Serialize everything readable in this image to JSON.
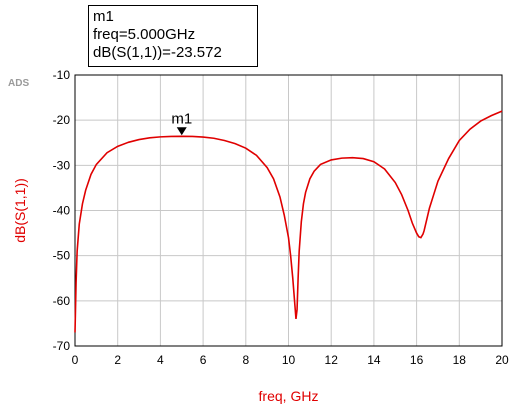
{
  "app_tag": "ADS",
  "marker": {
    "name": "m1",
    "freq_text": "freq=5.000GHz",
    "value_text": "dB(S(1,1))=-23.572"
  },
  "chart_data": {
    "type": "line",
    "title": "",
    "xlabel": "freq, GHz",
    "ylabel": "dB(S(1,1))",
    "xlim": [
      0,
      20
    ],
    "ylim": [
      -70,
      -10
    ],
    "xticks": [
      0,
      2,
      4,
      6,
      8,
      10,
      12,
      14,
      16,
      18,
      20
    ],
    "yticks": [
      -10,
      -20,
      -30,
      -40,
      -50,
      -60,
      -70
    ],
    "grid": true,
    "series": [
      {
        "color": "#e00000",
        "x": [
          0.0,
          0.05,
          0.1,
          0.2,
          0.35,
          0.5,
          0.75,
          1.0,
          1.5,
          2.0,
          2.5,
          3.0,
          3.5,
          4.0,
          4.5,
          5.0,
          5.5,
          6.0,
          6.5,
          7.0,
          7.5,
          8.0,
          8.5,
          9.0,
          9.3,
          9.6,
          9.8,
          10.0,
          10.1,
          10.2,
          10.3,
          10.35,
          10.4,
          10.45,
          10.5,
          10.6,
          10.7,
          10.8,
          11.0,
          11.2,
          11.5,
          12.0,
          12.5,
          13.0,
          13.5,
          14.0,
          14.5,
          15.0,
          15.3,
          15.6,
          15.8,
          16.0,
          16.1,
          16.2,
          16.3,
          16.35,
          16.4,
          16.5,
          16.6,
          16.8,
          17.0,
          17.5,
          18.0,
          18.5,
          19.0,
          19.5,
          20.0
        ],
        "y": [
          -67.0,
          -56.0,
          -49.0,
          -43.0,
          -38.5,
          -35.5,
          -32.0,
          -29.8,
          -27.2,
          -25.8,
          -24.9,
          -24.3,
          -23.9,
          -23.7,
          -23.6,
          -23.57,
          -23.6,
          -23.75,
          -24.0,
          -24.5,
          -25.2,
          -26.2,
          -27.8,
          -30.5,
          -33.0,
          -37.0,
          -41.0,
          -46.0,
          -50.0,
          -55.0,
          -61.0,
          -64.0,
          -62.0,
          -55.0,
          -49.0,
          -42.5,
          -38.5,
          -36.0,
          -33.0,
          -31.3,
          -29.8,
          -28.8,
          -28.4,
          -28.3,
          -28.5,
          -29.2,
          -30.8,
          -33.8,
          -36.5,
          -40.0,
          -42.8,
          -45.0,
          -45.8,
          -46.0,
          -45.2,
          -44.5,
          -43.5,
          -41.5,
          -39.5,
          -36.5,
          -33.5,
          -28.5,
          -24.5,
          -22.0,
          -20.2,
          -19.0,
          -18.0
        ]
      }
    ],
    "markers": [
      {
        "name": "m1",
        "x": 5.0,
        "y": -23.572
      }
    ]
  }
}
